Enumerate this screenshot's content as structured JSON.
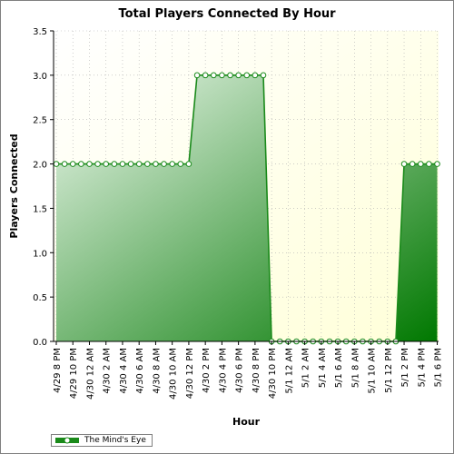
{
  "chart_data": {
    "type": "area",
    "title": "Total Players Connected By Hour",
    "xlabel": "Hour",
    "ylabel": "Players Connected",
    "ylim": [
      0,
      3.5
    ],
    "yticks": [
      "0.0",
      "0.5",
      "1.0",
      "1.5",
      "2.0",
      "2.5",
      "3.0",
      "3.5"
    ],
    "grid": true,
    "legend_position": "bottom-left",
    "tick_labels": [
      "4/29 8 PM",
      "4/29 10 PM",
      "4/30 12 AM",
      "4/30 2 AM",
      "4/30 4 AM",
      "4/30 6 AM",
      "4/30 8 AM",
      "4/30 10 AM",
      "4/30 12 PM",
      "4/30 2 PM",
      "4/30 4 PM",
      "4/30 6 PM",
      "4/30 8 PM",
      "4/30 10 PM",
      "5/1 12 AM",
      "5/1 2 AM",
      "5/1 4 AM",
      "5/1 6 AM",
      "5/1 8 AM",
      "5/1 10 AM",
      "5/1 12 PM",
      "5/1 2 PM",
      "5/1 4 PM",
      "5/1 6 PM"
    ],
    "series": [
      {
        "name": "The Mind's Eye",
        "x": [
          "4/29 8 PM",
          "4/29 9 PM",
          "4/29 10 PM",
          "4/29 11 PM",
          "4/30 12 AM",
          "4/30 1 AM",
          "4/30 2 AM",
          "4/30 3 AM",
          "4/30 4 AM",
          "4/30 5 AM",
          "4/30 6 AM",
          "4/30 7 AM",
          "4/30 8 AM",
          "4/30 9 AM",
          "4/30 10 AM",
          "4/30 11 AM",
          "4/30 12 PM",
          "4/30 1 PM",
          "4/30 2 PM",
          "4/30 3 PM",
          "4/30 4 PM",
          "4/30 5 PM",
          "4/30 6 PM",
          "4/30 7 PM",
          "4/30 8 PM",
          "4/30 9 PM",
          "4/30 10 PM",
          "4/30 11 PM",
          "5/1 12 AM",
          "5/1 1 AM",
          "5/1 2 AM",
          "5/1 3 AM",
          "5/1 4 AM",
          "5/1 5 AM",
          "5/1 6 AM",
          "5/1 7 AM",
          "5/1 8 AM",
          "5/1 9 AM",
          "5/1 10 AM",
          "5/1 11 AM",
          "5/1 12 PM",
          "5/1 1 PM",
          "5/1 2 PM",
          "5/1 3 PM",
          "5/1 4 PM",
          "5/1 5 PM",
          "5/1 6 PM"
        ],
        "values": [
          2,
          2,
          2,
          2,
          2,
          2,
          2,
          2,
          2,
          2,
          2,
          2,
          2,
          2,
          2,
          2,
          2,
          3,
          3,
          3,
          3,
          3,
          3,
          3,
          3,
          3,
          0,
          0,
          0,
          0,
          0,
          0,
          0,
          0,
          0,
          0,
          0,
          0,
          0,
          0,
          0,
          0,
          2,
          2,
          2,
          2,
          2
        ]
      }
    ],
    "colors": {
      "line": "#1a8a1a",
      "fill_light": "#e8f4e8",
      "fill_dark": "#007a00",
      "plot_bg_light": "#ffffe6",
      "grid": "#b0b0b0",
      "marker_fill": "#ffffff"
    }
  }
}
